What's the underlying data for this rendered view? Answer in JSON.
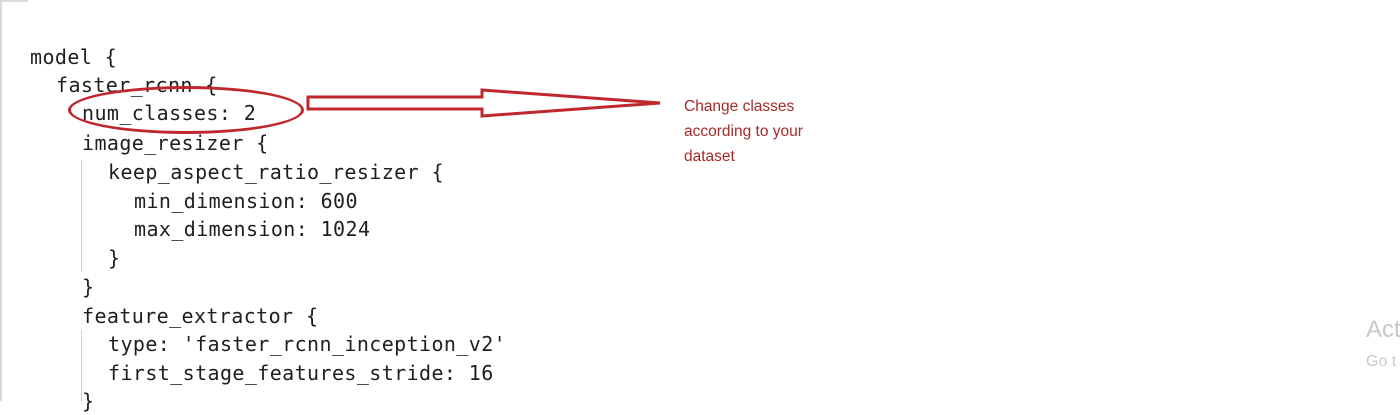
{
  "code": {
    "lines": [
      "model {",
      "faster_rcnn {",
      "num_classes: 2",
      "image_resizer {",
      "keep_aspect_ratio_resizer {",
      "min_dimension: 600",
      "max_dimension: 1024",
      "}",
      "}",
      "feature_extractor {",
      "type: 'faster_rcnn_inception_v2'",
      "first_stage_features_stride: 16",
      "}"
    ]
  },
  "annotation": {
    "text": "Change classes according to your dataset",
    "color": "#c0272d"
  },
  "watermark": {
    "line1": "Act",
    "line2": "Go t"
  }
}
